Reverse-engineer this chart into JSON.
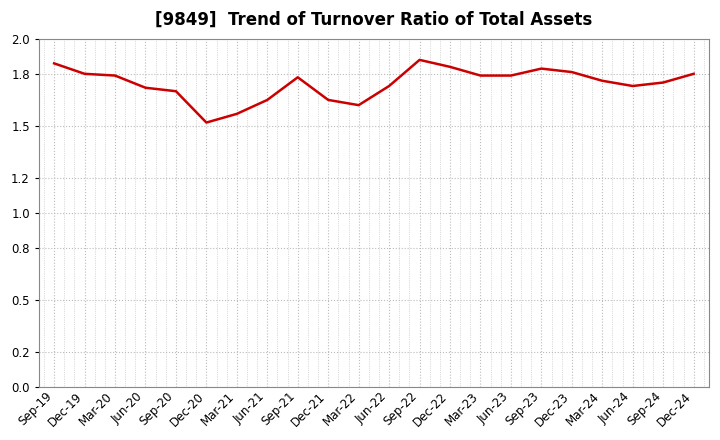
{
  "title": "[9849]  Trend of Turnover Ratio of Total Assets",
  "x_labels": [
    "Sep-19",
    "Dec-19",
    "Mar-20",
    "Jun-20",
    "Sep-20",
    "Dec-20",
    "Mar-21",
    "Jun-21",
    "Sep-21",
    "Dec-21",
    "Mar-22",
    "Jun-22",
    "Sep-22",
    "Dec-22",
    "Mar-23",
    "Jun-23",
    "Sep-23",
    "Dec-23",
    "Mar-24",
    "Jun-24",
    "Sep-24",
    "Dec-24"
  ],
  "values": [
    1.86,
    1.8,
    1.79,
    1.72,
    1.7,
    1.52,
    1.57,
    1.65,
    1.78,
    1.65,
    1.62,
    1.73,
    1.88,
    1.84,
    1.79,
    1.79,
    1.83,
    1.81,
    1.76,
    1.73,
    1.75,
    1.8
  ],
  "line_color": "#cc0000",
  "line_width": 1.8,
  "ylim": [
    0.0,
    2.0
  ],
  "yticks": [
    0.0,
    0.2,
    0.5,
    0.8,
    1.0,
    1.2,
    1.5,
    1.8,
    2.0
  ],
  "grid_color": "#bbbbbb",
  "background_color": "#ffffff",
  "title_fontsize": 12,
  "tick_fontsize": 8.5
}
